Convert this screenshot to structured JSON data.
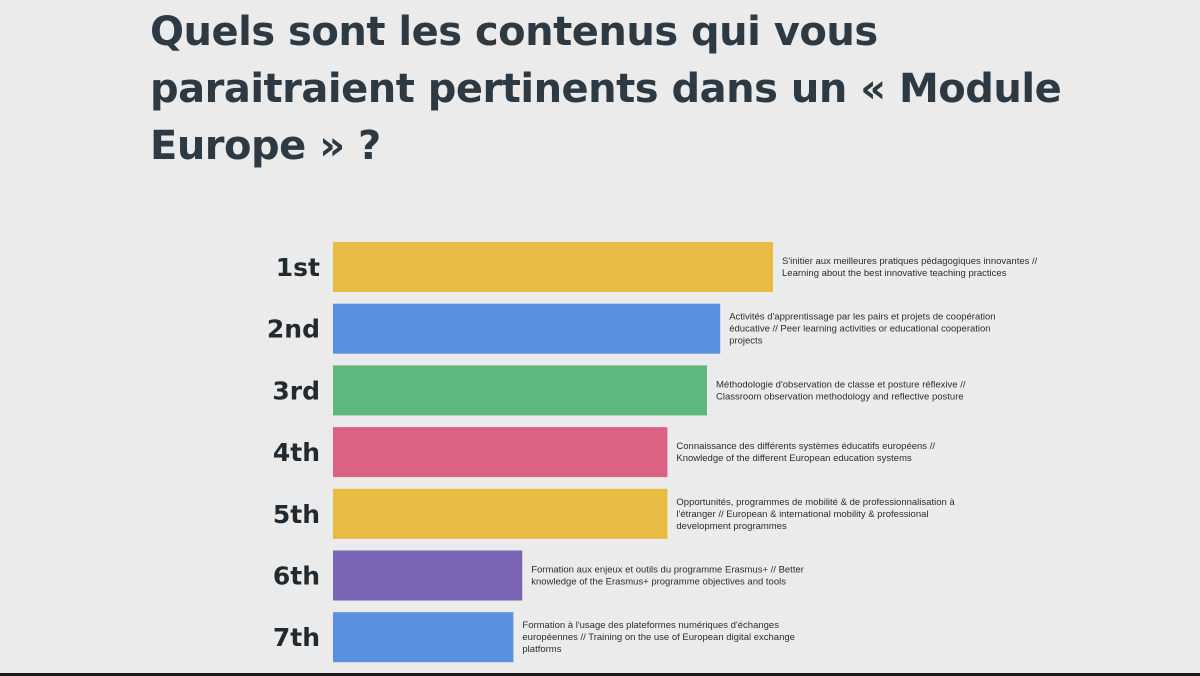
{
  "slide": {
    "title": "Quels sont les contenus qui vous paraitraient pertinents dans un « Module Europe » ?"
  },
  "chart_data": {
    "type": "bar",
    "orientation": "horizontal",
    "title": "Quels sont les contenus qui vous paraitraient pertinents dans un « Module Europe » ?",
    "axis_visible": false,
    "grid": false,
    "categories": [
      "1st",
      "2nd",
      "3rd",
      "4th",
      "5th",
      "6th",
      "7th"
    ],
    "values": [
      100,
      88,
      85,
      76,
      76,
      43,
      41
    ],
    "colors": [
      "#e8bc42",
      "#5b8fdf",
      "#5cb97d",
      "#dc6284",
      "#e8bc42",
      "#7a65b3",
      "#5b8fdf"
    ],
    "descriptions": [
      [
        "S'initier aux meilleures pratiques pédagogiques innovantes //",
        "Learning about the best innovative teaching practices"
      ],
      [
        "Activités d'apprentissage par les pairs et projets de coopération",
        "éducative // Peer learning activities or educational cooperation",
        "projects"
      ],
      [
        "Méthodologie d'observation de classe et posture réflexive //",
        "Classroom observation methodology and reflective posture"
      ],
      [
        "Connaissance des différents systèmes éducatifs européens //",
        "Knowledge of the different European education systems"
      ],
      [
        "Opportunités, programmes de mobilité & de professionnalisation à",
        "l'étranger // European & international mobility & professional",
        "development programmes"
      ],
      [
        "Formation aux enjeux et outils du programme Erasmus+ // Better",
        "knowledge of the Erasmus+ programme objectives and tools"
      ],
      [
        "Formation à l'usage des plateformes numériques d'échanges",
        "européennes // Training on the use of European digital exchange",
        "platforms"
      ]
    ]
  }
}
